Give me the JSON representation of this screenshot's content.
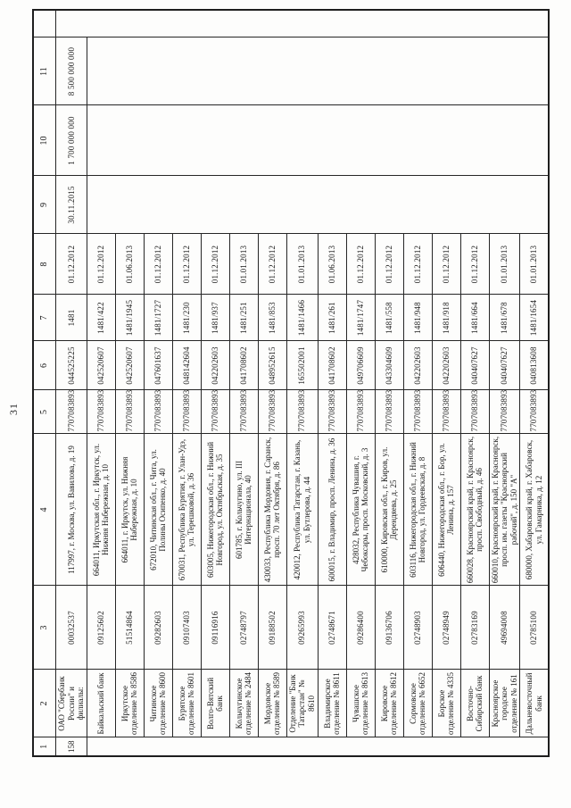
{
  "page": {
    "number": "31"
  },
  "table": {
    "column_headers": [
      "1",
      "2",
      "3",
      "4",
      "5",
      "6",
      "7",
      "8",
      "9",
      "10",
      "11"
    ],
    "rows": [
      {
        "cells": [
          "158",
          "ОАО \"Сбербанк России\" и филиалы:",
          "00032537",
          "117997, г. Москва, ул. Вавилова, д. 19",
          "7707083893",
          "044525225",
          "1481",
          "01.12.2012",
          "30.11.2015",
          "1 700 000 000",
          "8 500 000 000"
        ]
      },
      {
        "cells": [
          "",
          "Байкальский банк",
          "09125602",
          "664011, Иркутская обл., г. Иркутск, ул. Нижняя Набережная, д. 10",
          "7707083893",
          "042520607",
          "1481/422",
          "01.12.2012",
          "",
          "",
          ""
        ]
      },
      {
        "cells": [
          "",
          "Иркутское отделение № 8586",
          "51514864",
          "664011, г. Иркутск, ул. Нижняя Набережная, д. 10",
          "7707083893",
          "042520607",
          "1481/1945",
          "01.06.2013",
          "",
          "",
          ""
        ]
      },
      {
        "cells": [
          "",
          "Читинское отделение № 8600",
          "09282603",
          "672010, Читинская обл., г. Чита, ул. Полины Осипенко, д. 40",
          "7707083893",
          "047601637",
          "1481/1727",
          "01.12.2012",
          "",
          "",
          ""
        ]
      },
      {
        "cells": [
          "",
          "Бурятское отделение № 8601",
          "09107403",
          "670031, Республика Бурятия, г. Улан-Удэ, ул. Терешковой, д. 36",
          "7707083893",
          "048142604",
          "1481/230",
          "01.12.2012",
          "",
          "",
          ""
        ]
      },
      {
        "cells": [
          "",
          "Волго-Вятский банк",
          "09116916",
          "603005, Нижегородская обл., г. Нижний Новгород, ул. Октябрьская, д. 35",
          "7707083893",
          "042202603",
          "1481/937",
          "01.12.2012",
          "",
          "",
          ""
        ]
      },
      {
        "cells": [
          "",
          "Кольчугинское отделение № 2484",
          "02748797",
          "601785, г. Кольчугино, ул. III Интернационала, 40",
          "7707083893",
          "041708602",
          "1481/251",
          "01.01.2013",
          "",
          "",
          ""
        ]
      },
      {
        "cells": [
          "",
          "Мордовское отделение № 8589",
          "09188502",
          "430033, Республика Мордовия, г. Саранск, просп. 70 лет Октября, д. 86",
          "7707083893",
          "048952615",
          "1481/853",
          "01.12.2012",
          "",
          "",
          ""
        ]
      },
      {
        "cells": [
          "",
          "Отделение \"Банк Татарстан\" № 8610",
          "09265993",
          "420012, Республика Татарстан, г. Казань, ул. Бутлерова, д. 44",
          "7707083893",
          "165502001",
          "1481/1466",
          "01.01.2013",
          "",
          "",
          ""
        ]
      },
      {
        "cells": [
          "",
          "Владимирское отделение № 8611",
          "02748671",
          "600015, г. Владимир, просп. Ленина, д. 36",
          "7707083893",
          "041708602",
          "1481/261",
          "01.06.2013",
          "",
          "",
          ""
        ]
      },
      {
        "cells": [
          "",
          "Чувашское отделение № 8613",
          "09286400",
          "428032, Республика Чувашия, г. Чебоксары, просп. Московский, д. 3",
          "7707083893",
          "049706609",
          "1481/1747",
          "01.12.2012",
          "",
          "",
          ""
        ]
      },
      {
        "cells": [
          "",
          "Кировское отделение № 8612",
          "09136706",
          "610000, Кировская обл., г. Киров, ул. Дерендяева, д. 25",
          "7707083893",
          "043304609",
          "1481/558",
          "01.12.2012",
          "",
          "",
          ""
        ]
      },
      {
        "cells": [
          "",
          "Сормовское отделение № 6652",
          "02748903",
          "603116, Нижегородская обл., г. Нижний Новгород, ул. Гордеевская, д. 8",
          "7707083893",
          "042202603",
          "1481/948",
          "01.12.2012",
          "",
          "",
          ""
        ]
      },
      {
        "cells": [
          "",
          "Борское отделение № 4335",
          "02748949",
          "606440, Нижегородская обл., г. Бор, ул. Ленина, д. 157",
          "7707083893",
          "042202603",
          "1481/918",
          "01.12.2012",
          "",
          "",
          ""
        ]
      },
      {
        "cells": [
          "",
          "Восточно-Сибирский банк",
          "02783169",
          "660028, Красноярский край, г. Красноярск, просп. Свободный, д. 46",
          "7707083893",
          "040407627",
          "1481/664",
          "01.12.2012",
          "",
          "",
          ""
        ]
      },
      {
        "cells": [
          "",
          "Красноярское городское отделение № 161",
          "49694008",
          "660010, Красноярский край, г. Красноярск, просп. им. газеты \"Красноярский рабочий\", д. 150 \"А\"",
          "7707083893",
          "040407627",
          "1481/678",
          "01.01.2013",
          "",
          "",
          ""
        ]
      },
      {
        "cells": [
          "",
          "Дальневосточный банк",
          "02785100",
          "680000, Хабаровский край, г. Хабаровск, ул. Гамарника, д. 12",
          "7707083893",
          "040813608",
          "1481/1654",
          "01.01.2013",
          "",
          "",
          ""
        ]
      }
    ]
  }
}
